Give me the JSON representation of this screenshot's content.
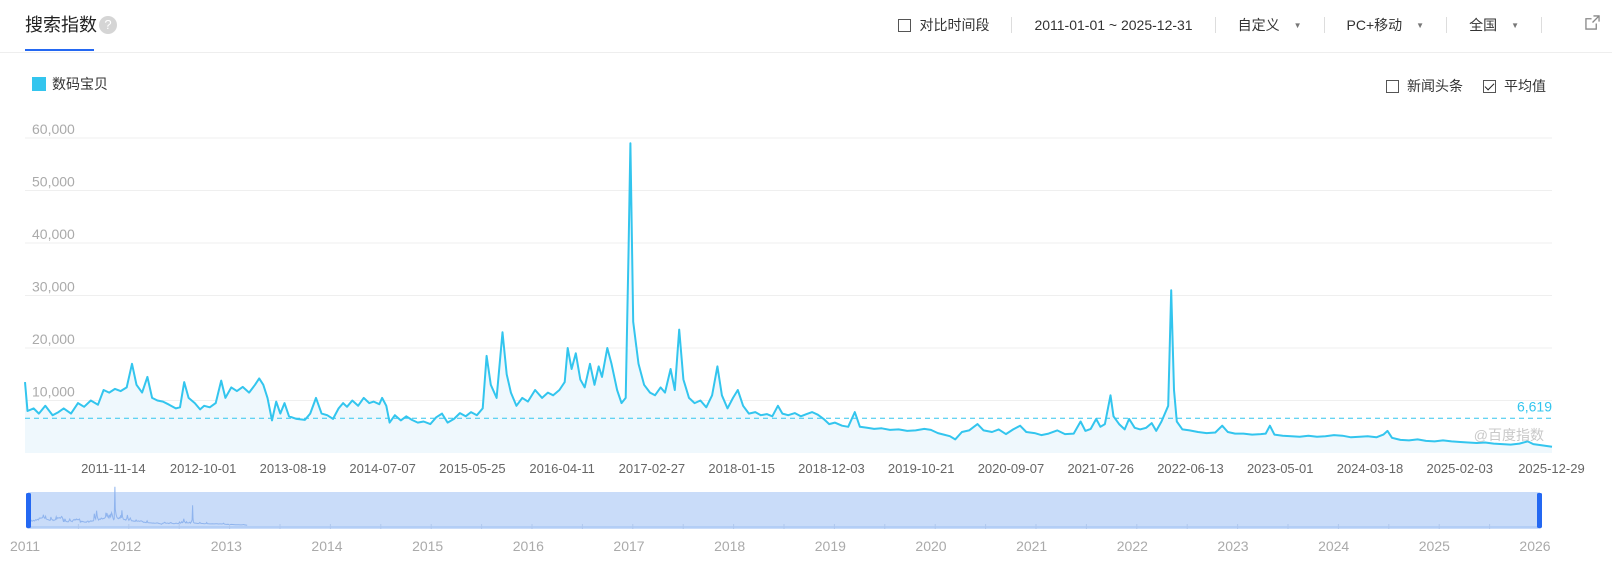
{
  "header": {
    "title": "搜索指数",
    "help_icon": "?",
    "compare_label": "对比时间段",
    "date_range": "2011-01-01 ~ 2025-12-31",
    "custom_label": "自定义",
    "device_label": "PC+移动",
    "region_label": "全国",
    "caret": "▼",
    "external_icon": "external-link-icon"
  },
  "legend": {
    "series_name": "数码宝贝",
    "color": "#33c5ee"
  },
  "options": {
    "news_label": "新闻头条",
    "news_checked": false,
    "average_label": "平均值",
    "average_checked": true
  },
  "watermark": "@百度指数",
  "colors": {
    "line": "#33c5ee",
    "area": "#eff8fd",
    "avg_line": "#33c5ee",
    "brush_fill": "#c9dcf9",
    "brush_handle": "#2468f2",
    "title_underline": "#2468f2"
  },
  "chart_data": {
    "type": "line",
    "series": [
      {
        "name": "数码宝贝"
      }
    ],
    "ylim": [
      0,
      60000
    ],
    "y_ticks": [
      "10,000",
      "20,000",
      "30,000",
      "40,000",
      "50,000",
      "60,000"
    ],
    "x_start": "2011-01-01",
    "x_end": "2025-12-31",
    "x_ticks": [
      "2011-11-14",
      "2012-10-01",
      "2013-08-19",
      "2014-07-07",
      "2015-05-25",
      "2016-04-11",
      "2017-02-27",
      "2018-01-15",
      "2018-12-03",
      "2019-10-21",
      "2020-09-07",
      "2021-07-26",
      "2022-06-13",
      "2023-05-01",
      "2024-03-18",
      "2025-02-03",
      "2025-12-29"
    ],
    "average": 6619,
    "average_label": "6,619",
    "grid": true,
    "points": [
      [
        "2011-01-01",
        13500
      ],
      [
        "2011-01-10",
        8000
      ],
      [
        "2011-02-01",
        8500
      ],
      [
        "2011-02-20",
        7500
      ],
      [
        "2011-03-15",
        9000
      ],
      [
        "2011-04-10",
        7200
      ],
      [
        "2011-05-01",
        7800
      ],
      [
        "2011-05-20",
        8500
      ],
      [
        "2011-06-15",
        7500
      ],
      [
        "2011-07-10",
        9500
      ],
      [
        "2011-08-01",
        8800
      ],
      [
        "2011-08-25",
        10000
      ],
      [
        "2011-09-20",
        9200
      ],
      [
        "2011-10-10",
        12000
      ],
      [
        "2011-10-30",
        11500
      ],
      [
        "2011-11-20",
        12200
      ],
      [
        "2011-12-10",
        11800
      ],
      [
        "2012-01-01",
        12500
      ],
      [
        "2012-01-20",
        17000
      ],
      [
        "2012-02-05",
        13000
      ],
      [
        "2012-02-25",
        11500
      ],
      [
        "2012-03-15",
        14500
      ],
      [
        "2012-04-01",
        10500
      ],
      [
        "2012-04-20",
        10000
      ],
      [
        "2012-05-10",
        9800
      ],
      [
        "2012-06-01",
        9200
      ],
      [
        "2012-06-25",
        8500
      ],
      [
        "2012-07-10",
        8700
      ],
      [
        "2012-07-25",
        13500
      ],
      [
        "2012-08-10",
        10500
      ],
      [
        "2012-09-01",
        9500
      ],
      [
        "2012-09-20",
        8300
      ],
      [
        "2012-10-05",
        9000
      ],
      [
        "2012-10-25",
        8700
      ],
      [
        "2012-11-15",
        9500
      ],
      [
        "2012-12-05",
        13800
      ],
      [
        "2012-12-20",
        10500
      ],
      [
        "2013-01-10",
        12500
      ],
      [
        "2013-01-30",
        11800
      ],
      [
        "2013-02-20",
        12600
      ],
      [
        "2013-03-15",
        11500
      ],
      [
        "2013-04-05",
        13000
      ],
      [
        "2013-04-20",
        14200
      ],
      [
        "2013-05-05",
        13000
      ],
      [
        "2013-05-20",
        10500
      ],
      [
        "2013-06-05",
        6200
      ],
      [
        "2013-06-20",
        9800
      ],
      [
        "2013-07-05",
        7500
      ],
      [
        "2013-07-20",
        9500
      ],
      [
        "2013-08-05",
        7000
      ],
      [
        "2013-09-01",
        6500
      ],
      [
        "2013-10-01",
        6300
      ],
      [
        "2013-10-20",
        7500
      ],
      [
        "2013-11-10",
        10500
      ],
      [
        "2013-11-30",
        7500
      ],
      [
        "2013-12-20",
        7200
      ],
      [
        "2014-01-10",
        6500
      ],
      [
        "2014-01-30",
        8500
      ],
      [
        "2014-02-15",
        9500
      ],
      [
        "2014-03-01",
        8800
      ],
      [
        "2014-03-20",
        10000
      ],
      [
        "2014-04-10",
        9000
      ],
      [
        "2014-04-30",
        10500
      ],
      [
        "2014-05-20",
        9500
      ],
      [
        "2014-06-05",
        9800
      ],
      [
        "2014-06-25",
        9300
      ],
      [
        "2014-07-05",
        10500
      ],
      [
        "2014-07-20",
        9000
      ],
      [
        "2014-08-01",
        5800
      ],
      [
        "2014-08-20",
        7200
      ],
      [
        "2014-09-10",
        6200
      ],
      [
        "2014-09-30",
        7000
      ],
      [
        "2014-10-20",
        6300
      ],
      [
        "2014-11-10",
        5800
      ],
      [
        "2014-12-01",
        6000
      ],
      [
        "2014-12-25",
        5500
      ],
      [
        "2015-01-15",
        6800
      ],
      [
        "2015-02-05",
        7500
      ],
      [
        "2015-02-25",
        5800
      ],
      [
        "2015-03-20",
        6500
      ],
      [
        "2015-04-10",
        7600
      ],
      [
        "2015-05-01",
        7000
      ],
      [
        "2015-05-20",
        7800
      ],
      [
        "2015-06-10",
        7200
      ],
      [
        "2015-07-01",
        8500
      ],
      [
        "2015-07-15",
        18500
      ],
      [
        "2015-07-30",
        13000
      ],
      [
        "2015-08-20",
        10500
      ],
      [
        "2015-09-10",
        23000
      ],
      [
        "2015-09-25",
        15000
      ],
      [
        "2015-10-10",
        11500
      ],
      [
        "2015-10-30",
        9000
      ],
      [
        "2015-11-20",
        10500
      ],
      [
        "2015-12-10",
        9800
      ],
      [
        "2016-01-05",
        12000
      ],
      [
        "2016-01-30",
        10500
      ],
      [
        "2016-02-20",
        11500
      ],
      [
        "2016-03-10",
        11000
      ],
      [
        "2016-04-01",
        12000
      ],
      [
        "2016-04-20",
        13500
      ],
      [
        "2016-05-01",
        20000
      ],
      [
        "2016-05-15",
        16000
      ],
      [
        "2016-05-30",
        19000
      ],
      [
        "2016-06-15",
        14000
      ],
      [
        "2016-07-01",
        12500
      ],
      [
        "2016-07-20",
        17000
      ],
      [
        "2016-08-05",
        13000
      ],
      [
        "2016-08-20",
        16500
      ],
      [
        "2016-09-01",
        14500
      ],
      [
        "2016-09-20",
        20000
      ],
      [
        "2016-10-05",
        17000
      ],
      [
        "2016-10-25",
        12000
      ],
      [
        "2016-11-10",
        9500
      ],
      [
        "2016-11-25",
        10500
      ],
      [
        "2016-12-05",
        38000
      ],
      [
        "2016-12-12",
        59000
      ],
      [
        "2016-12-22",
        25000
      ],
      [
        "2017-01-10",
        17000
      ],
      [
        "2017-01-30",
        13000
      ],
      [
        "2017-02-20",
        11500
      ],
      [
        "2017-03-10",
        11000
      ],
      [
        "2017-03-30",
        12500
      ],
      [
        "2017-04-15",
        11500
      ],
      [
        "2017-05-05",
        16000
      ],
      [
        "2017-05-20",
        12000
      ],
      [
        "2017-06-05",
        23500
      ],
      [
        "2017-06-20",
        14000
      ],
      [
        "2017-07-10",
        10500
      ],
      [
        "2017-07-30",
        9500
      ],
      [
        "2017-08-20",
        10000
      ],
      [
        "2017-09-10",
        8700
      ],
      [
        "2017-10-01",
        11000
      ],
      [
        "2017-10-20",
        16500
      ],
      [
        "2017-11-05",
        11000
      ],
      [
        "2017-11-25",
        8500
      ],
      [
        "2017-12-15",
        10500
      ],
      [
        "2018-01-01",
        12000
      ],
      [
        "2018-01-20",
        9000
      ],
      [
        "2018-02-10",
        7500
      ],
      [
        "2018-03-05",
        7800
      ],
      [
        "2018-03-25",
        7200
      ],
      [
        "2018-04-15",
        7400
      ],
      [
        "2018-05-05",
        7000
      ],
      [
        "2018-05-25",
        9000
      ],
      [
        "2018-06-10",
        7500
      ],
      [
        "2018-07-01",
        7200
      ],
      [
        "2018-07-25",
        7600
      ],
      [
        "2018-08-15",
        7000
      ],
      [
        "2018-09-05",
        7400
      ],
      [
        "2018-09-25",
        7800
      ],
      [
        "2018-10-15",
        7300
      ],
      [
        "2018-11-05",
        6500
      ],
      [
        "2018-11-25",
        5500
      ],
      [
        "2018-12-15",
        5800
      ],
      [
        "2019-01-10",
        5200
      ],
      [
        "2019-02-01",
        5000
      ],
      [
        "2019-02-25",
        7800
      ],
      [
        "2019-03-15",
        5000
      ],
      [
        "2019-04-10",
        4800
      ],
      [
        "2019-05-05",
        4600
      ],
      [
        "2019-06-01",
        4700
      ],
      [
        "2019-07-01",
        4400
      ],
      [
        "2019-08-01",
        4500
      ],
      [
        "2019-09-01",
        4200
      ],
      [
        "2019-10-01",
        4300
      ],
      [
        "2019-11-01",
        4600
      ],
      [
        "2019-11-25",
        4400
      ],
      [
        "2019-12-20",
        3800
      ],
      [
        "2020-01-10",
        3500
      ],
      [
        "2020-02-01",
        3200
      ],
      [
        "2020-02-20",
        2600
      ],
      [
        "2020-03-15",
        4000
      ],
      [
        "2020-04-10",
        4300
      ],
      [
        "2020-05-10",
        5500
      ],
      [
        "2020-06-01",
        4300
      ],
      [
        "2020-07-01",
        4000
      ],
      [
        "2020-07-25",
        4500
      ],
      [
        "2020-08-20",
        3600
      ],
      [
        "2020-09-15",
        4500
      ],
      [
        "2020-10-10",
        5200
      ],
      [
        "2020-11-01",
        4000
      ],
      [
        "2020-12-01",
        3800
      ],
      [
        "2020-12-25",
        3400
      ],
      [
        "2021-01-20",
        3700
      ],
      [
        "2021-02-20",
        4300
      ],
      [
        "2021-03-20",
        3600
      ],
      [
        "2021-04-20",
        3700
      ],
      [
        "2021-05-15",
        6000
      ],
      [
        "2021-06-01",
        4200
      ],
      [
        "2021-06-20",
        4600
      ],
      [
        "2021-07-10",
        6500
      ],
      [
        "2021-07-25",
        5000
      ],
      [
        "2021-08-10",
        5500
      ],
      [
        "2021-08-30",
        11000
      ],
      [
        "2021-09-10",
        7000
      ],
      [
        "2021-09-30",
        5500
      ],
      [
        "2021-10-20",
        4500
      ],
      [
        "2021-11-05",
        6500
      ],
      [
        "2021-11-25",
        4800
      ],
      [
        "2021-12-15",
        4500
      ],
      [
        "2022-01-05",
        4800
      ],
      [
        "2022-01-25",
        5700
      ],
      [
        "2022-02-10",
        4200
      ],
      [
        "2022-03-01",
        6000
      ],
      [
        "2022-03-25",
        9000
      ],
      [
        "2022-04-05",
        31000
      ],
      [
        "2022-04-15",
        12000
      ],
      [
        "2022-04-25",
        6000
      ],
      [
        "2022-05-15",
        4500
      ],
      [
        "2022-06-10",
        4300
      ],
      [
        "2022-07-10",
        4000
      ],
      [
        "2022-08-10",
        3800
      ],
      [
        "2022-09-10",
        3900
      ],
      [
        "2022-10-05",
        5200
      ],
      [
        "2022-10-25",
        4000
      ],
      [
        "2022-11-20",
        3700
      ],
      [
        "2022-12-20",
        3700
      ],
      [
        "2023-01-20",
        3500
      ],
      [
        "2023-02-20",
        3600
      ],
      [
        "2023-03-10",
        3700
      ],
      [
        "2023-03-25",
        5200
      ],
      [
        "2023-04-10",
        3500
      ],
      [
        "2023-05-10",
        3300
      ],
      [
        "2023-06-10",
        3200
      ],
      [
        "2023-07-10",
        3100
      ],
      [
        "2023-08-10",
        3300
      ],
      [
        "2023-09-10",
        3100
      ],
      [
        "2023-10-10",
        3200
      ],
      [
        "2023-11-10",
        3400
      ],
      [
        "2023-12-10",
        3300
      ],
      [
        "2024-01-10",
        3000
      ],
      [
        "2024-02-10",
        3100
      ],
      [
        "2024-03-10",
        3200
      ],
      [
        "2024-04-10",
        3000
      ],
      [
        "2024-05-05",
        3500
      ],
      [
        "2024-05-20",
        4200
      ],
      [
        "2024-06-05",
        2900
      ],
      [
        "2024-07-05",
        2500
      ],
      [
        "2024-08-05",
        2400
      ],
      [
        "2024-09-05",
        2600
      ],
      [
        "2024-10-05",
        2300
      ],
      [
        "2024-11-05",
        2200
      ],
      [
        "2024-12-05",
        2400
      ],
      [
        "2025-01-05",
        2200
      ],
      [
        "2025-02-05",
        2100
      ],
      [
        "2025-03-05",
        2000
      ],
      [
        "2025-04-05",
        1900
      ],
      [
        "2025-05-05",
        2000
      ],
      [
        "2025-06-05",
        1800
      ],
      [
        "2025-07-05",
        1700
      ],
      [
        "2025-08-05",
        1600
      ],
      [
        "2025-09-05",
        1800
      ],
      [
        "2025-10-05",
        2200
      ],
      [
        "2025-10-25",
        1700
      ],
      [
        "2025-11-20",
        1500
      ],
      [
        "2025-12-31",
        1200
      ]
    ]
  },
  "navigator": {
    "year_labels": [
      "2011",
      "2012",
      "2013",
      "2014",
      "2015",
      "2016",
      "2017",
      "2018",
      "2019",
      "2020",
      "2021",
      "2022",
      "2023",
      "2024",
      "2025",
      "2026"
    ]
  }
}
